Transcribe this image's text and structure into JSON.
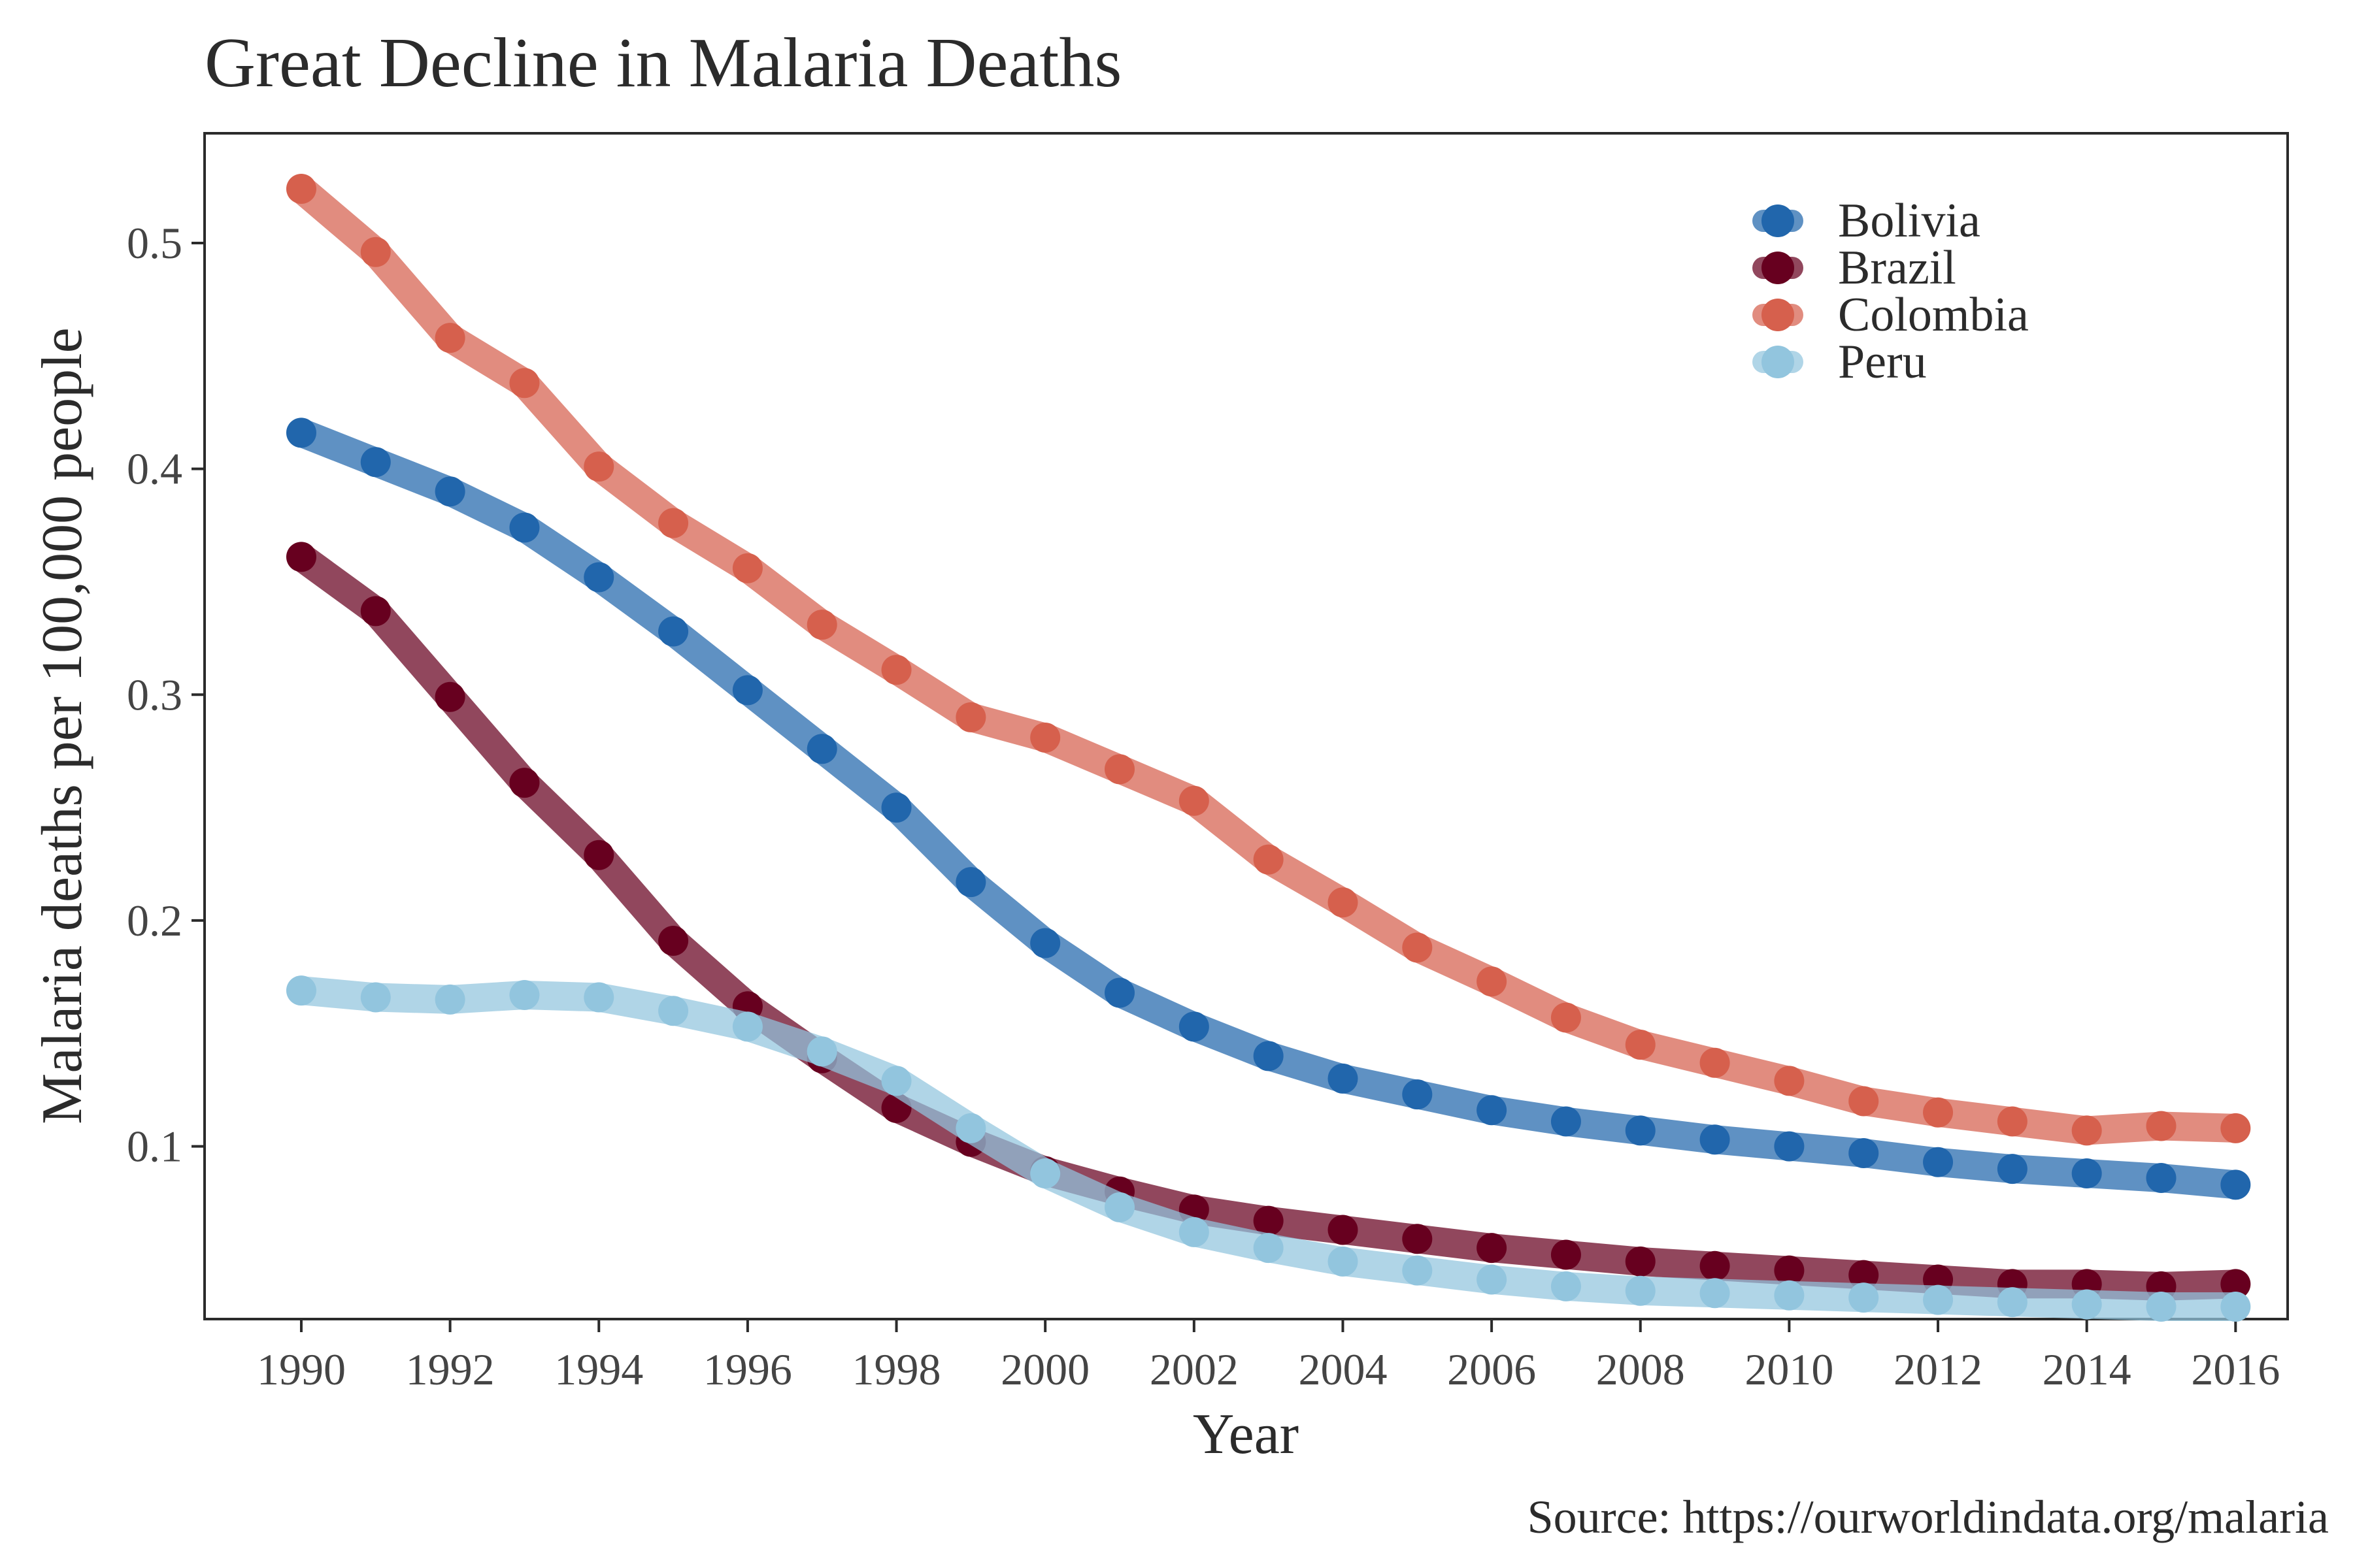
{
  "chart_data": {
    "type": "line",
    "title": "Great Decline in Malaria Deaths",
    "xlabel": "Year",
    "ylabel": "Malaria deaths per 100,000 people",
    "caption": "Source: https://ourworldindata.org/malaria",
    "xlim": [
      1988.7,
      2016.7
    ],
    "ylim": [
      0.0235,
      0.5486
    ],
    "x_ticks": [
      1990,
      1992,
      1994,
      1996,
      1998,
      2000,
      2002,
      2004,
      2006,
      2008,
      2010,
      2012,
      2014,
      2016
    ],
    "y_ticks": [
      0.1,
      0.2,
      0.3,
      0.4,
      0.5
    ],
    "y_tick_labels": [
      "0.1",
      "0.2",
      "0.3",
      "0.4",
      "0.5"
    ],
    "grid": false,
    "legend_position": "top-right",
    "x": [
      1990,
      1991,
      1992,
      1993,
      1994,
      1995,
      1996,
      1997,
      1998,
      1999,
      2000,
      2001,
      2002,
      2003,
      2004,
      2005,
      2006,
      2007,
      2008,
      2009,
      2010,
      2011,
      2012,
      2013,
      2014,
      2015,
      2016
    ],
    "series": [
      {
        "name": "Bolivia",
        "color": "#2166ac",
        "values": [
          0.416,
          0.403,
          0.39,
          0.374,
          0.352,
          0.328,
          0.302,
          0.276,
          0.25,
          0.217,
          0.19,
          0.168,
          0.153,
          0.14,
          0.13,
          0.123,
          0.116,
          0.111,
          0.107,
          0.103,
          0.1,
          0.097,
          0.093,
          0.09,
          0.088,
          0.086,
          0.083
        ]
      },
      {
        "name": "Brazil",
        "color": "#67001f",
        "values": [
          0.361,
          0.337,
          0.299,
          0.261,
          0.229,
          0.191,
          0.162,
          0.139,
          0.117,
          0.102,
          0.089,
          0.08,
          0.072,
          0.067,
          0.063,
          0.059,
          0.055,
          0.052,
          0.049,
          0.047,
          0.045,
          0.043,
          0.041,
          0.039,
          0.039,
          0.038,
          0.039
        ]
      },
      {
        "name": "Colombia",
        "color": "#d6604d",
        "values": [
          0.524,
          0.496,
          0.458,
          0.438,
          0.401,
          0.376,
          0.356,
          0.331,
          0.311,
          0.29,
          0.281,
          0.267,
          0.253,
          0.227,
          0.208,
          0.188,
          0.173,
          0.157,
          0.145,
          0.137,
          0.129,
          0.12,
          0.115,
          0.111,
          0.107,
          0.109,
          0.108
        ]
      },
      {
        "name": "Peru",
        "color": "#92c5de",
        "values": [
          0.169,
          0.166,
          0.165,
          0.167,
          0.166,
          0.16,
          0.153,
          0.142,
          0.129,
          0.108,
          0.088,
          0.073,
          0.062,
          0.055,
          0.049,
          0.045,
          0.041,
          0.038,
          0.036,
          0.035,
          0.034,
          0.033,
          0.032,
          0.031,
          0.03,
          0.029,
          0.029
        ]
      }
    ]
  }
}
